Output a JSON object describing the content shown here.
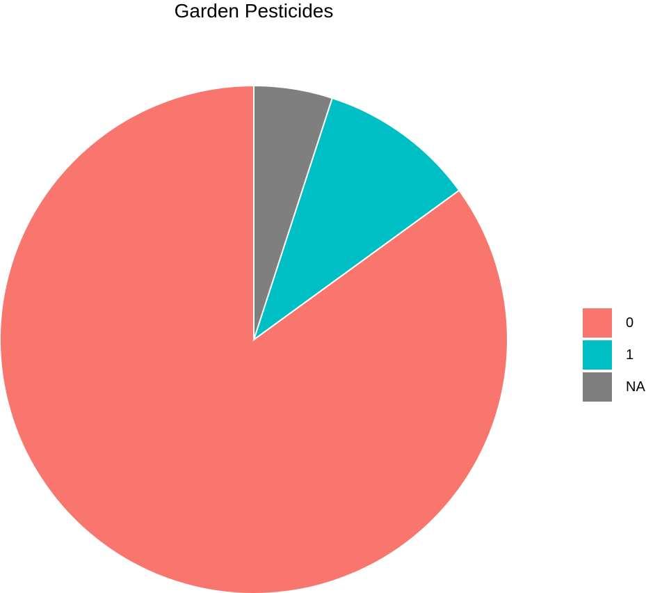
{
  "chart_data": {
    "type": "pie",
    "title": "Garden Pesticides",
    "slices": [
      {
        "label": "0",
        "value": 0.85,
        "color": "#F8766D"
      },
      {
        "label": "1",
        "value": 0.1,
        "color": "#00BFC4"
      },
      {
        "label": "NA",
        "value": 0.05,
        "color": "#7F7F7F"
      }
    ],
    "legend": {
      "position": "right",
      "entries": [
        {
          "label": "0",
          "color": "#F8766D"
        },
        {
          "label": "1",
          "color": "#00BFC4"
        },
        {
          "label": "NA",
          "color": "#7F7F7F"
        }
      ]
    }
  }
}
